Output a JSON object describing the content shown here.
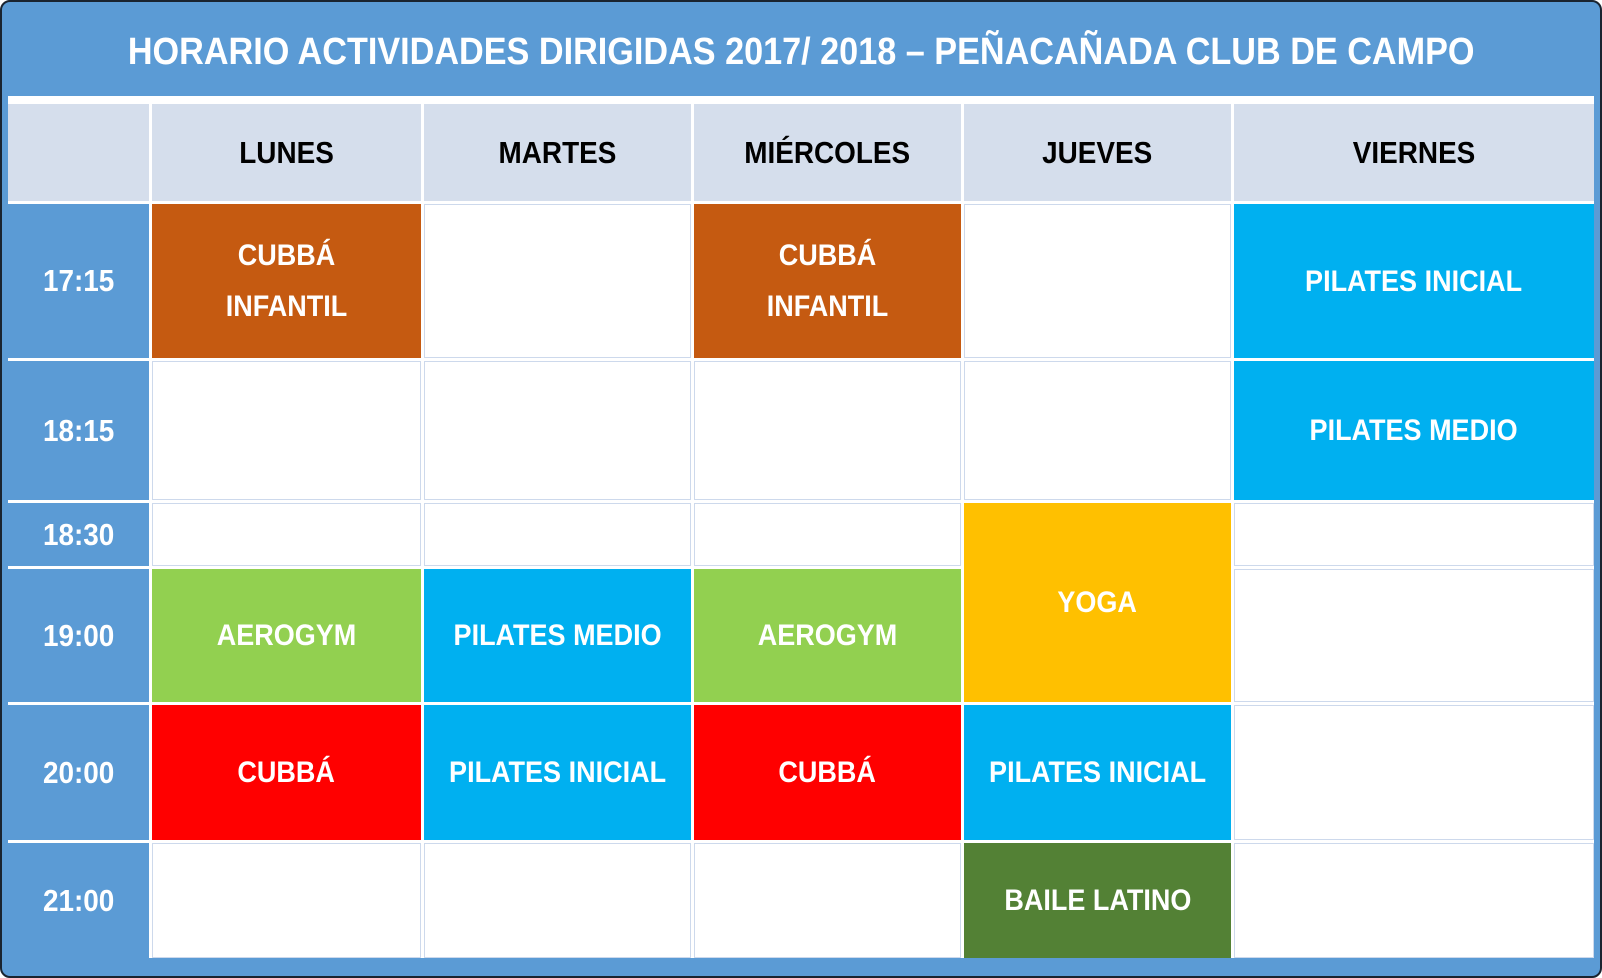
{
  "palette": {
    "frame_blue": "#5B9BD5",
    "title_text": "#FFFFFF",
    "header_bg": "#D5DEEC",
    "header_text": "#000000",
    "time_bg": "#5B9BD5",
    "time_text": "#FFFFFF",
    "empty_cell_border": "#CDD9EC",
    "orange": "#C55A11",
    "cyan": "#00B0F0",
    "green": "#92D050",
    "yellow": "#FFC000",
    "red": "#FF0000",
    "olive_green": "#538135"
  },
  "header": {
    "title": "HORARIO ACTIVIDADES DIRIGIDAS 2017/ 2018 – PEÑACAÑADA CLUB DE CAMPO"
  },
  "days": [
    "LUNES",
    "MARTES",
    "MIÉRCOLES",
    "JUEVES",
    "VIERNES"
  ],
  "times": [
    "17:15",
    "18:15",
    "18:30",
    "19:00",
    "20:00",
    "21:00"
  ],
  "cells": [
    {
      "day": "LUNES",
      "time": "17:15",
      "label": "CUBBÁ\nINFANTIL",
      "color": "#C55A11"
    },
    {
      "day": "MIÉRCOLES",
      "time": "17:15",
      "label": "CUBBÁ\nINFANTIL",
      "color": "#C55A11"
    },
    {
      "day": "VIERNES",
      "time": "17:15",
      "label": "PILATES INICIAL",
      "color": "#00B0F0"
    },
    {
      "day": "VIERNES",
      "time": "18:15",
      "label": "PILATES MEDIO",
      "color": "#00B0F0"
    },
    {
      "day": "JUEVES",
      "time": "18:30–19:00",
      "label": "YOGA",
      "color": "#FFC000"
    },
    {
      "day": "LUNES",
      "time": "19:00",
      "label": "AEROGYM",
      "color": "#92D050"
    },
    {
      "day": "MARTES",
      "time": "19:00",
      "label": "PILATES MEDIO",
      "color": "#00B0F0"
    },
    {
      "day": "MIÉRCOLES",
      "time": "19:00",
      "label": "AEROGYM",
      "color": "#92D050"
    },
    {
      "day": "LUNES",
      "time": "20:00",
      "label": "CUBBÁ",
      "color": "#FF0000"
    },
    {
      "day": "MARTES",
      "time": "20:00",
      "label": "PILATES INICIAL",
      "color": "#00B0F0"
    },
    {
      "day": "MIÉRCOLES",
      "time": "20:00",
      "label": "CUBBÁ",
      "color": "#FF0000"
    },
    {
      "day": "JUEVES",
      "time": "20:00",
      "label": "PILATES INICIAL",
      "color": "#00B0F0"
    },
    {
      "day": "JUEVES",
      "time": "21:00",
      "label": "BAILE LATINO",
      "color": "#538135"
    }
  ]
}
